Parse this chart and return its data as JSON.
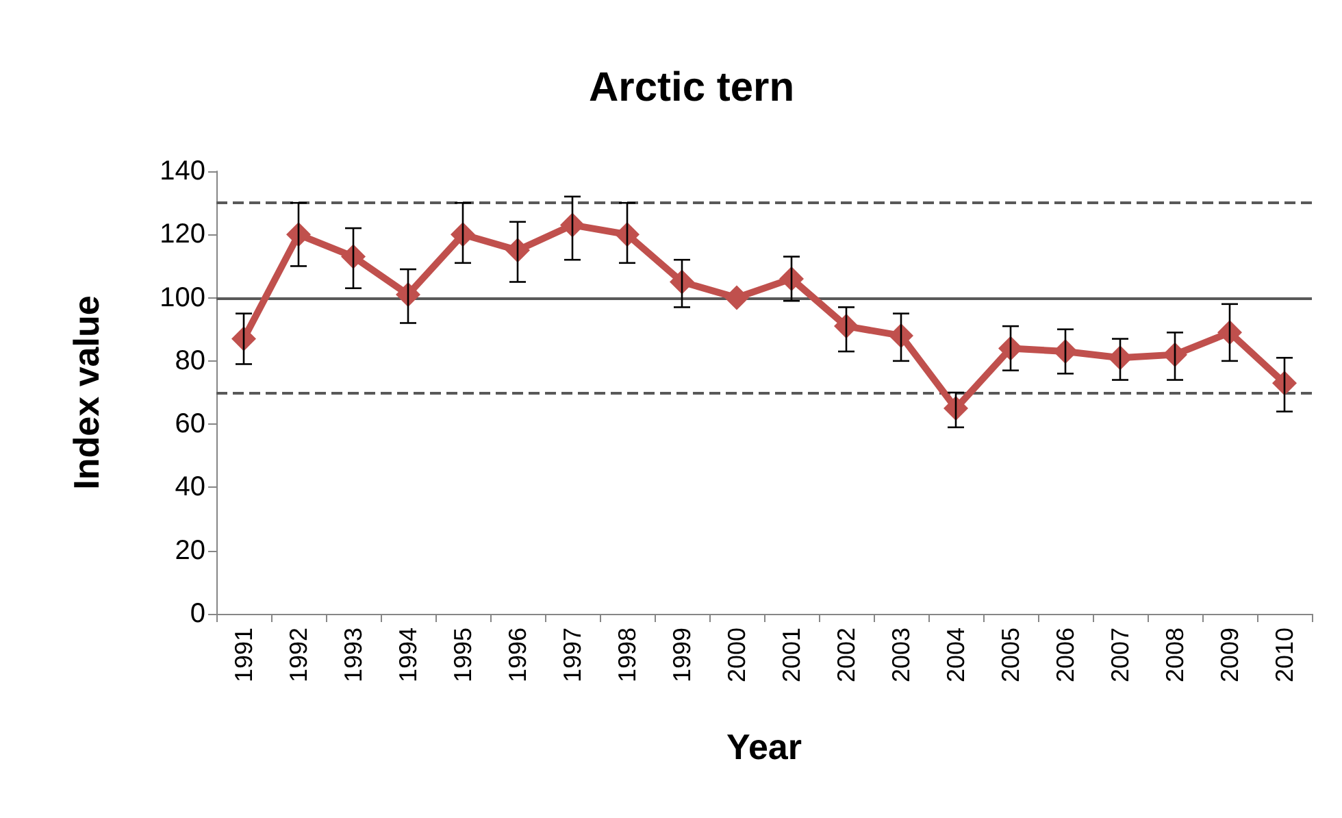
{
  "chart_data": {
    "type": "line",
    "title": "Arctic tern",
    "xlabel": "Year",
    "ylabel": "Index value",
    "categories": [
      "1991",
      "1992",
      "1993",
      "1994",
      "1995",
      "1996",
      "1997",
      "1998",
      "1999",
      "2000",
      "2001",
      "2002",
      "2003",
      "2004",
      "2005",
      "2006",
      "2007",
      "2008",
      "2009",
      "2010"
    ],
    "series": [
      {
        "color": "#c0504d",
        "values": [
          87,
          120,
          113,
          101,
          120,
          115,
          123,
          120,
          105,
          100,
          106,
          91,
          88,
          65,
          84,
          83,
          81,
          82,
          89,
          73
        ],
        "errors": [
          [
            79,
            95
          ],
          [
            110,
            130
          ],
          [
            103,
            122
          ],
          [
            92,
            109
          ],
          [
            111,
            130
          ],
          [
            105,
            124
          ],
          [
            112,
            132
          ],
          [
            111,
            130
          ],
          [
            97,
            112
          ],
          null,
          [
            99,
            113
          ],
          [
            83,
            97
          ],
          [
            80,
            95
          ],
          [
            59,
            70
          ],
          [
            77,
            91
          ],
          [
            76,
            90
          ],
          [
            74,
            87
          ],
          [
            74,
            89
          ],
          [
            80,
            98
          ],
          [
            64,
            81
          ]
        ]
      }
    ],
    "ylim": [
      0,
      140
    ],
    "yticks": [
      0,
      20,
      40,
      60,
      80,
      100,
      120,
      140
    ],
    "ref_lines": [
      {
        "axis": "y",
        "value": 100,
        "color": "#595959",
        "line_style": "solid"
      },
      {
        "axis": "y",
        "value": 70,
        "color": "#595959",
        "line_style": "dashed"
      },
      {
        "axis": "y",
        "value": 130,
        "color": "#595959",
        "line_style": "dashed"
      }
    ],
    "marker": "diamond",
    "line_style": "solid",
    "grid": false
  }
}
